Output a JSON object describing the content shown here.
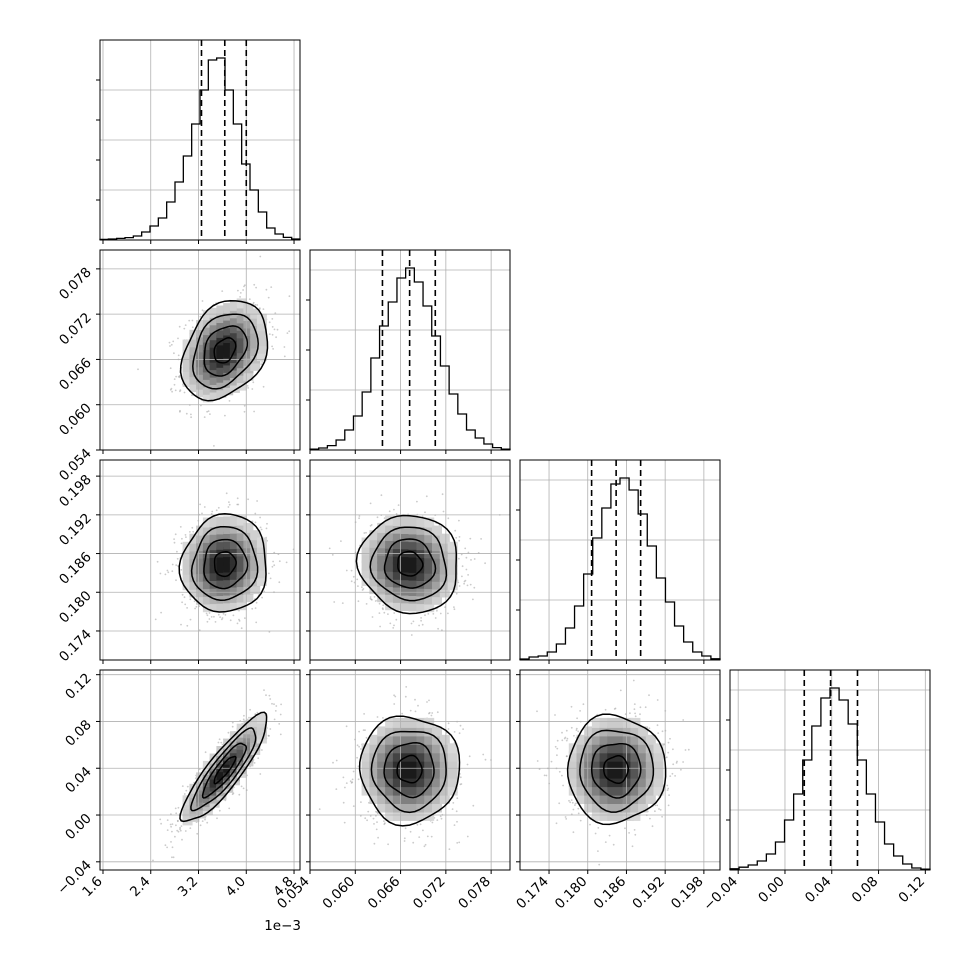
{
  "chart_data": {
    "type": "corner",
    "n_params": 4,
    "params": [
      {
        "range": [
          1.55,
          4.9
        ],
        "ticks": [
          1.6,
          2.4,
          3.2,
          4.0,
          4.8
        ],
        "tick_labels": [
          "1.6",
          "2.4",
          "3.2",
          "4.0",
          "4.8"
        ],
        "offset_text": "1e−3",
        "quantiles": [
          3.25,
          3.64,
          4.0
        ],
        "hist_y_ticks": 4,
        "hist_grid": [
          0.25,
          0.5,
          0.75
        ],
        "hist": [
          0.003,
          0.005,
          0.008,
          0.012,
          0.02,
          0.04,
          0.07,
          0.11,
          0.19,
          0.29,
          0.42,
          0.58,
          0.75,
          0.9,
          0.91,
          0.75,
          0.58,
          0.38,
          0.25,
          0.14,
          0.06,
          0.03,
          0.013,
          0.005
        ]
      },
      {
        "range": [
          0.054,
          0.0805
        ],
        "ticks": [
          0.054,
          0.06,
          0.066,
          0.072,
          0.078
        ],
        "tick_labels": [
          "0.054",
          "0.060",
          "0.066",
          "0.072",
          "0.078"
        ],
        "offset_text": "",
        "quantiles": [
          0.0636,
          0.0672,
          0.0706
        ],
        "hist_y_ticks": 3,
        "hist_grid": [
          0.3,
          0.6,
          0.9
        ],
        "hist": [
          0.004,
          0.01,
          0.022,
          0.05,
          0.1,
          0.17,
          0.29,
          0.46,
          0.62,
          0.74,
          0.86,
          0.91,
          0.84,
          0.72,
          0.57,
          0.42,
          0.28,
          0.18,
          0.1,
          0.06,
          0.03,
          0.012,
          0.004
        ]
      },
      {
        "range": [
          0.1695,
          0.2005
        ],
        "ticks": [
          0.174,
          0.18,
          0.186,
          0.192,
          0.198
        ],
        "tick_labels": [
          "0.174",
          "0.180",
          "0.186",
          "0.192",
          "0.198"
        ],
        "offset_text": "",
        "quantiles": [
          0.1806,
          0.1844,
          0.1882
        ],
        "hist_y_ticks": 3,
        "hist_grid": [
          0.3,
          0.6,
          0.9
        ],
        "hist": [
          0.005,
          0.015,
          0.02,
          0.04,
          0.08,
          0.16,
          0.27,
          0.43,
          0.61,
          0.76,
          0.88,
          0.91,
          0.85,
          0.73,
          0.57,
          0.41,
          0.29,
          0.17,
          0.09,
          0.04,
          0.02,
          0.006
        ]
      },
      {
        "range": [
          -0.047,
          0.124
        ],
        "ticks": [
          -0.04,
          0.0,
          0.04,
          0.08,
          0.12
        ],
        "tick_labels": [
          "−0.04",
          "0.00",
          "0.04",
          "0.08",
          "0.12"
        ],
        "offset_text": "",
        "quantiles": [
          0.0165,
          0.039,
          0.062
        ],
        "hist_y_ticks": 3,
        "hist_grid": [
          0.3,
          0.6,
          0.9
        ],
        "hist": [
          0.006,
          0.014,
          0.025,
          0.045,
          0.08,
          0.14,
          0.25,
          0.38,
          0.55,
          0.72,
          0.86,
          0.91,
          0.85,
          0.73,
          0.55,
          0.38,
          0.24,
          0.13,
          0.07,
          0.03,
          0.01,
          0.004
        ]
      }
    ],
    "pairs": [
      {
        "col": 0,
        "row": 1,
        "mean": [
          3.64,
          0.0672
        ],
        "sd": [
          0.36,
          0.0033
        ],
        "rho": 0.3
      },
      {
        "col": 0,
        "row": 2,
        "mean": [
          3.64,
          0.1844
        ],
        "sd": [
          0.36,
          0.0038
        ],
        "rho": 0.05
      },
      {
        "col": 1,
        "row": 2,
        "mean": [
          0.0672,
          0.1844
        ],
        "sd": [
          0.0033,
          0.0038
        ],
        "rho": -0.05
      },
      {
        "col": 0,
        "row": 3,
        "mean": [
          3.64,
          0.039
        ],
        "sd": [
          0.36,
          0.023
        ],
        "rho": 0.88
      },
      {
        "col": 1,
        "row": 3,
        "mean": [
          0.0672,
          0.039
        ],
        "sd": [
          0.0033,
          0.023
        ],
        "rho": 0.0
      },
      {
        "col": 2,
        "row": 3,
        "mean": [
          0.1844,
          0.039
        ],
        "sd": [
          0.0038,
          0.023
        ],
        "rho": 0.0
      }
    ],
    "contour_levels_sigma": [
      0.5,
      1.0,
      1.5,
      2.0
    ],
    "colors": {
      "lines": "#000000",
      "grid": "#b0b0b0",
      "points": "#8c8c8c"
    }
  }
}
